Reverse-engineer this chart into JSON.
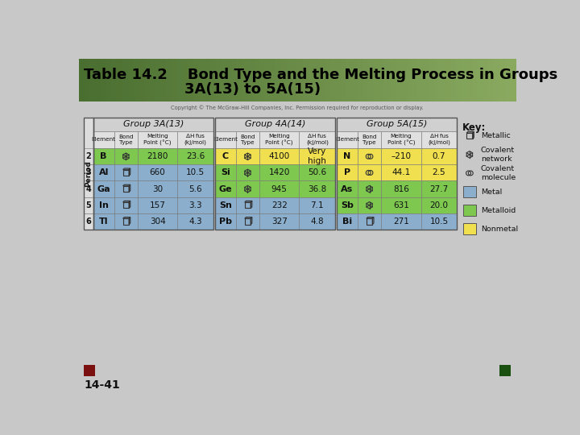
{
  "title_line1": "Table 14.2    Bond Type and the Melting Process in Groups",
  "title_line2": "                    3A(13) to 5A(15)",
  "title_bg_left": "#5a7a3a",
  "title_bg_right": "#a0b878",
  "title_fg": "#000000",
  "copyright": "Copyright © The McGraw-Hill Companies, Inc. Permission required for reproduction or display.",
  "bg_color": "#c8c8c8",
  "group_headers": [
    "Group 3A(13)",
    "Group 4A(14)",
    "Group 5A(15)"
  ],
  "rows_3A": [
    {
      "period": "2",
      "element": "B",
      "mp": "2180",
      "dh": "23.6",
      "color": "#7ec850"
    },
    {
      "period": "3",
      "element": "Al",
      "mp": "660",
      "dh": "10.5",
      "color": "#8aaecc"
    },
    {
      "period": "4",
      "element": "Ga",
      "mp": "30",
      "dh": "5.6",
      "color": "#8aaecc"
    },
    {
      "period": "5",
      "element": "In",
      "mp": "157",
      "dh": "3.3",
      "color": "#8aaecc"
    },
    {
      "period": "6",
      "element": "Tl",
      "mp": "304",
      "dh": "4.3",
      "color": "#8aaecc"
    }
  ],
  "rows_4A": [
    {
      "period": "2",
      "element": "C",
      "mp": "4100",
      "dh": "Very\nhigh",
      "color": "#f0e050"
    },
    {
      "period": "3",
      "element": "Si",
      "mp": "1420",
      "dh": "50.6",
      "color": "#7ec850"
    },
    {
      "period": "4",
      "element": "Ge",
      "mp": "945",
      "dh": "36.8",
      "color": "#7ec850"
    },
    {
      "period": "5",
      "element": "Sn",
      "mp": "232",
      "dh": "7.1",
      "color": "#8aaecc"
    },
    {
      "period": "6",
      "element": "Pb",
      "mp": "327",
      "dh": "4.8",
      "color": "#8aaecc"
    }
  ],
  "rows_5A": [
    {
      "period": "2",
      "element": "N",
      "mp": "–210",
      "dh": "0.7",
      "color": "#f0e050"
    },
    {
      "period": "3",
      "element": "P",
      "mp": "44.1",
      "dh": "2.5",
      "color": "#f0e050"
    },
    {
      "period": "4",
      "element": "As",
      "mp": "816",
      "dh": "27.7",
      "color": "#7ec850"
    },
    {
      "period": "5",
      "element": "Sb",
      "mp": "631",
      "dh": "20.0",
      "color": "#7ec850"
    },
    {
      "period": "6",
      "element": "Bi",
      "mp": "271",
      "dh": "10.5",
      "color": "#8aaecc"
    }
  ],
  "bond_types_3A": [
    "cov_net",
    "metallic",
    "metallic",
    "metallic",
    "metallic"
  ],
  "bond_types_4A": [
    "cov_net",
    "cov_net",
    "cov_net",
    "metallic",
    "metallic"
  ],
  "bond_types_5A": [
    "cov_mol",
    "cov_mol",
    "cov_net",
    "cov_net",
    "metallic"
  ],
  "footer_text": "14-41",
  "footer_left_color": "#7a1010",
  "footer_right_color": "#1a5010"
}
